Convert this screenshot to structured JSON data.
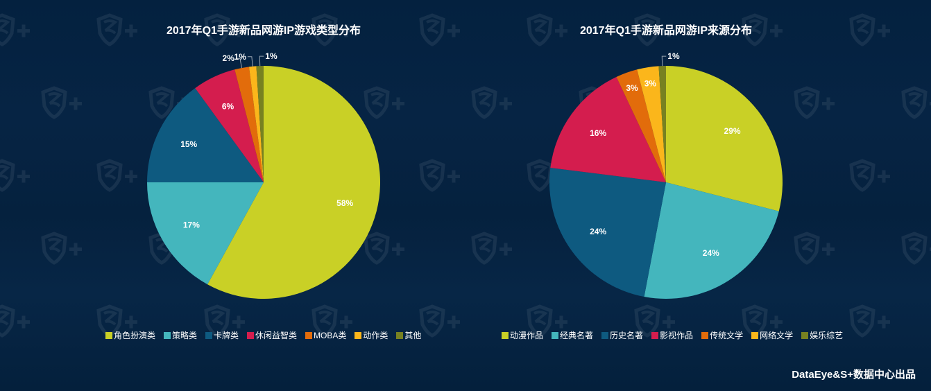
{
  "footer": {
    "credit": "DataEye&S+数据中心出品"
  },
  "watermark": {
    "glyph": "S+"
  },
  "chart_data": [
    {
      "type": "pie",
      "title": "2017年Q1手游新品网游IP游戏类型分布",
      "start_angle": "12 o'clock, clockwise",
      "categories": [
        "角色扮演类",
        "策略类",
        "卡牌类",
        "休闲益智类",
        "MOBA类",
        "动作类",
        "其他"
      ],
      "values": [
        58,
        17,
        15,
        6,
        2,
        1,
        1
      ],
      "labels": [
        "58%",
        "17%",
        "15%",
        "6%",
        "2%",
        "1%",
        "1%"
      ],
      "colors": [
        "#c9d026",
        "#44b6bd",
        "#0e5a80",
        "#d41d4e",
        "#e26c0b",
        "#fbb61b",
        "#778121"
      ],
      "legend_position": "bottom"
    },
    {
      "type": "pie",
      "title": "2017年Q1手游新品网游IP来源分布",
      "start_angle": "12 o'clock, clockwise",
      "categories": [
        "动漫作品",
        "经典名著",
        "历史名著",
        "影视作品",
        "传统文学",
        "网络文学",
        "娱乐综艺"
      ],
      "values": [
        29,
        24,
        24,
        16,
        3,
        3,
        1
      ],
      "labels": [
        "29%",
        "24%",
        "24%",
        "16%",
        "3%",
        "3%",
        "1%"
      ],
      "colors": [
        "#c9d026",
        "#44b6bd",
        "#0e5a80",
        "#d41d4e",
        "#e26c0b",
        "#fbb61b",
        "#778121"
      ],
      "legend_position": "bottom"
    }
  ]
}
